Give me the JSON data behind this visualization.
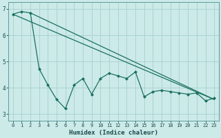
{
  "xlabel": "Humidex (Indice chaleur)",
  "bg_color": "#cceae8",
  "grid_color": "#aad4d0",
  "line_color": "#1a7060",
  "xlim": [
    -0.5,
    23.5
  ],
  "ylim": [
    2.75,
    7.25
  ],
  "yticks": [
    3,
    4,
    5,
    6,
    7
  ],
  "xticks": [
    0,
    1,
    2,
    3,
    4,
    5,
    6,
    7,
    8,
    9,
    10,
    11,
    12,
    13,
    14,
    15,
    16,
    17,
    18,
    19,
    20,
    21,
    22,
    23
  ],
  "jagged_x": [
    0,
    1,
    2,
    3,
    4,
    5,
    6,
    7,
    8,
    9,
    10,
    11,
    12,
    13,
    14,
    15,
    16,
    17,
    18,
    19,
    20,
    21,
    22,
    23
  ],
  "jagged_y": [
    6.8,
    6.9,
    6.85,
    4.72,
    4.1,
    3.55,
    3.2,
    4.1,
    4.35,
    3.75,
    4.35,
    4.55,
    4.45,
    4.35,
    4.6,
    3.65,
    3.85,
    3.9,
    3.85,
    3.8,
    3.75,
    3.8,
    3.5,
    3.6
  ],
  "trend1_x": [
    0,
    23
  ],
  "trend1_y": [
    6.8,
    3.55
  ],
  "trend2_x": [
    2,
    23
  ],
  "trend2_y": [
    6.85,
    3.55
  ]
}
